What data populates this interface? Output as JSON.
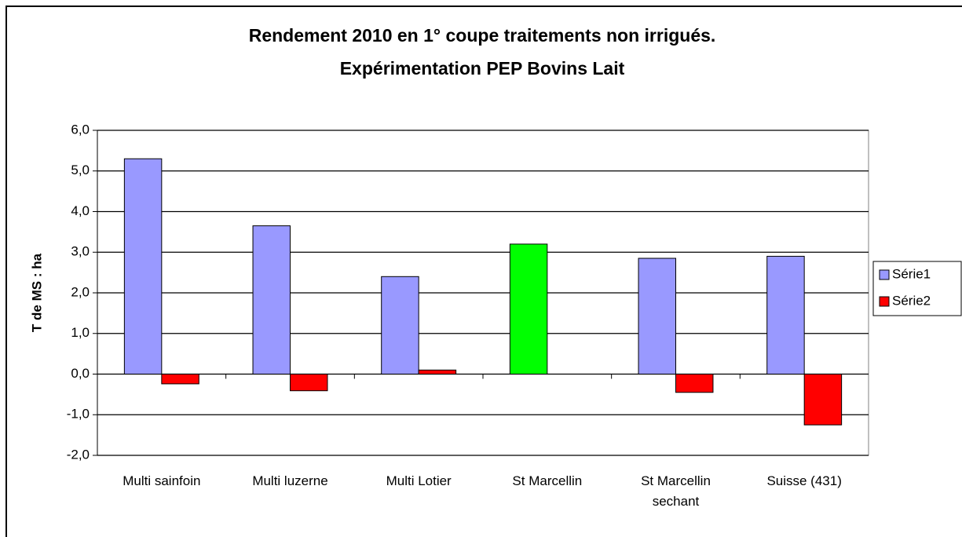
{
  "chart_data": {
    "type": "bar",
    "title": [
      "Rendement 2010 en 1° coupe traitements non irrigués.",
      "Expérimentation PEP Bovins Lait"
    ],
    "ylabel": "T de MS : ha",
    "categories": [
      "Multi sainfoin",
      "Multi luzerne",
      "Multi Lotier",
      "St Marcellin",
      "St Marcellin sechant",
      "Suisse (431)"
    ],
    "series": [
      {
        "name": "Série1",
        "color": "#9999ff",
        "colors": [
          "#9999ff",
          "#9999ff",
          "#9999ff",
          "#00ff00",
          "#9999ff",
          "#9999ff"
        ],
        "values": [
          5.3,
          3.65,
          2.4,
          3.2,
          2.85,
          2.9
        ]
      },
      {
        "name": "Série2",
        "color": "#ff0000",
        "values": [
          -0.24,
          -0.41,
          0.1,
          0,
          -0.45,
          -1.25
        ]
      }
    ],
    "ylim": [
      -2,
      6
    ],
    "yticks": [
      {
        "value": -2,
        "label": "-2,0"
      },
      {
        "value": -1,
        "label": "-1,0"
      },
      {
        "value": 0,
        "label": "0,0"
      },
      {
        "value": 1,
        "label": "1,0"
      },
      {
        "value": 2,
        "label": "2,0"
      },
      {
        "value": 3,
        "label": "3,0"
      },
      {
        "value": 4,
        "label": "4,0"
      },
      {
        "value": 5,
        "label": "5,0"
      },
      {
        "value": 6,
        "label": "6,0"
      }
    ],
    "grid": true,
    "legend": "right"
  }
}
